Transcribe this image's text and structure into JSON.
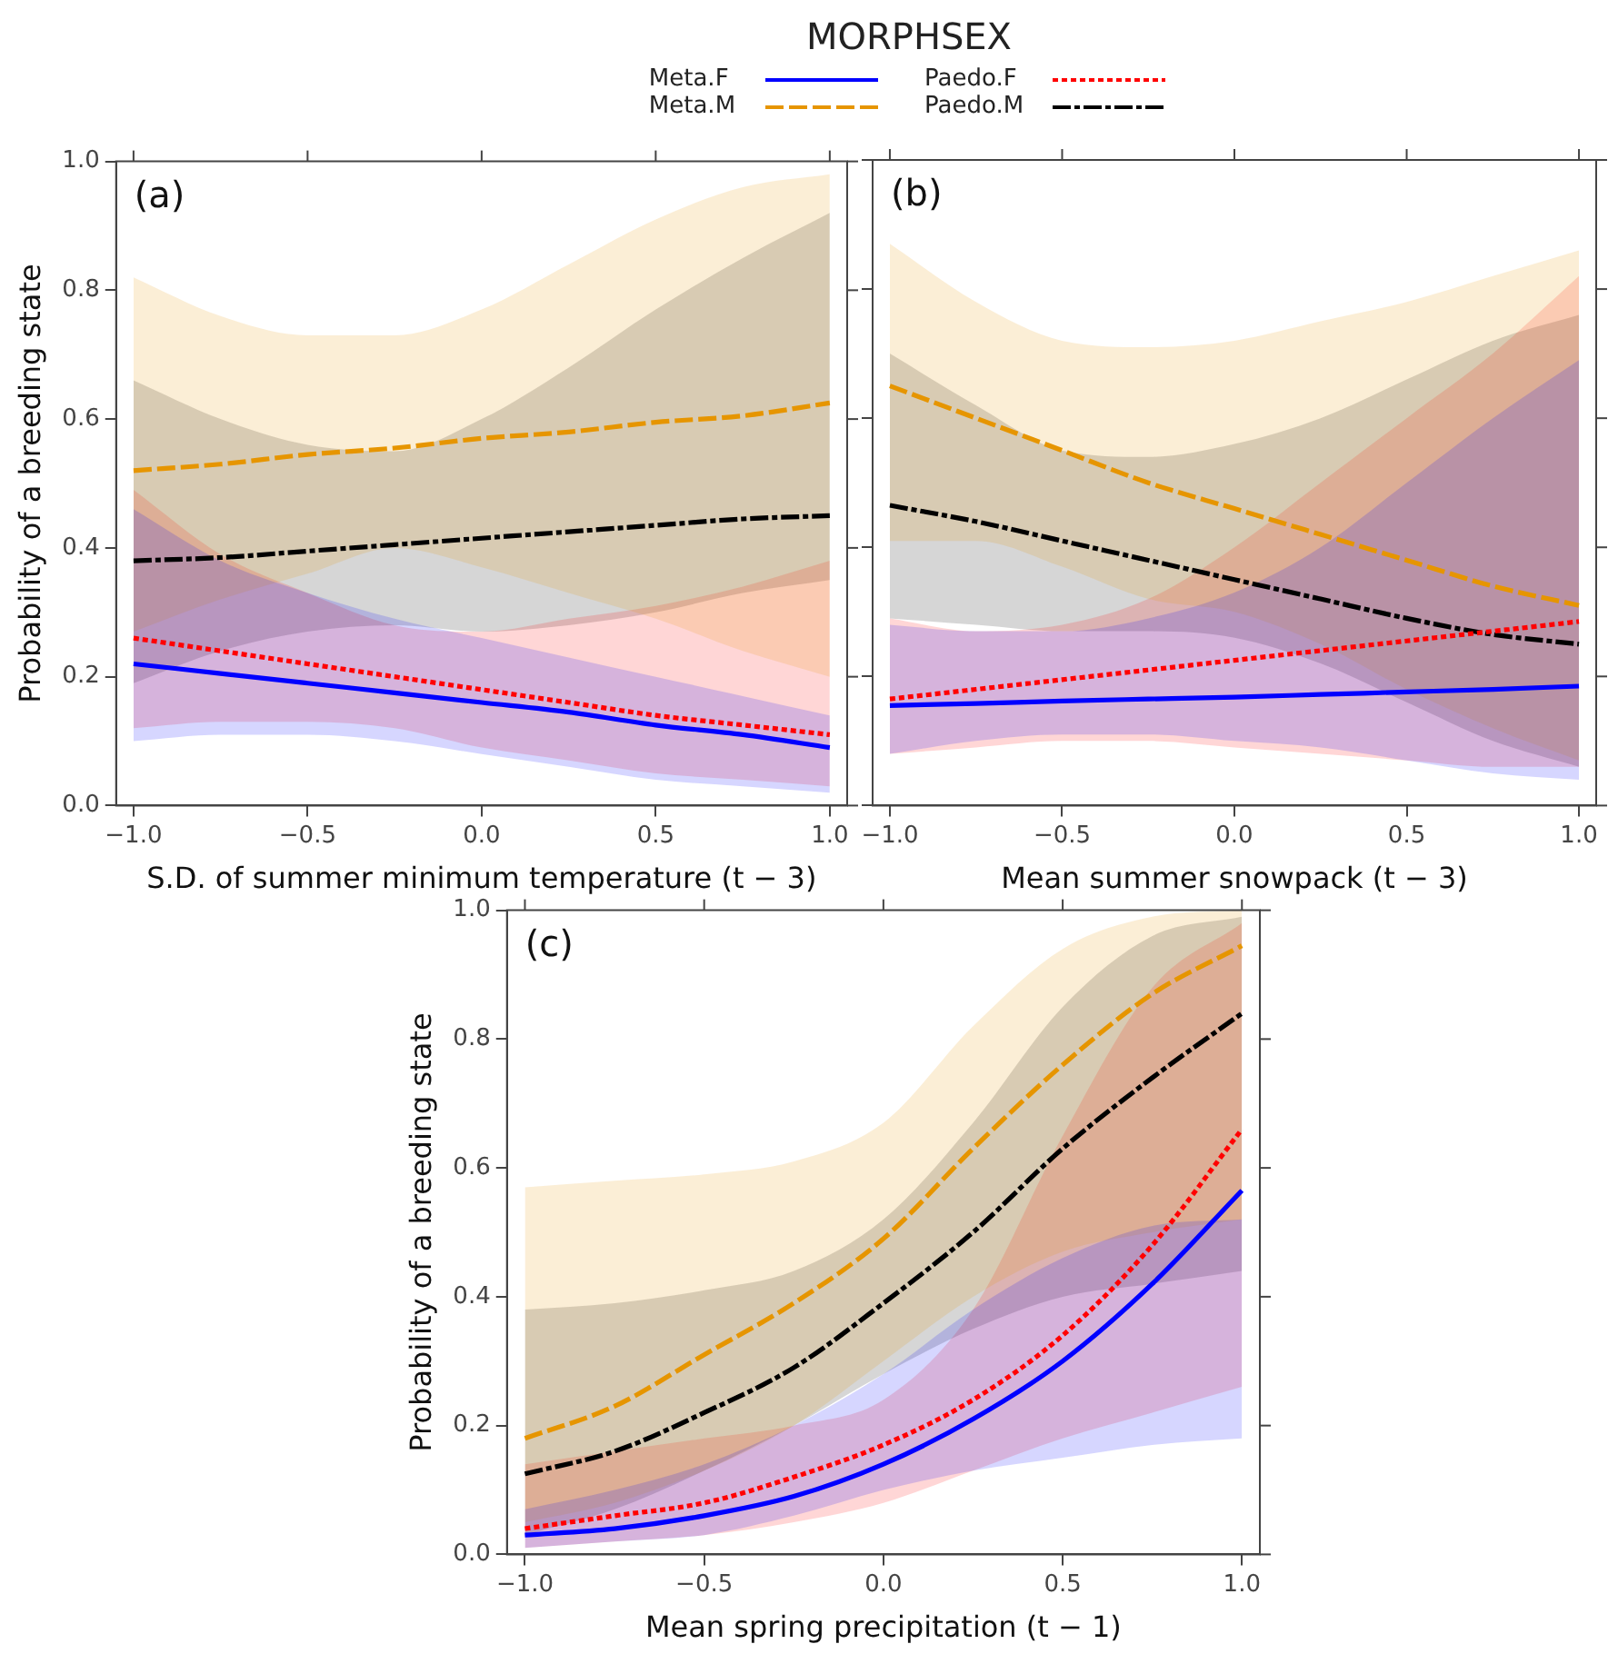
{
  "chart_data": [
    {
      "type": "line",
      "ylabel": "Probability of a breeding state",
      "xlabel": "S.D. of summer minimum temperature (t − 3)",
      "legend_title": "MORPHSEX",
      "legend": "top",
      "annotations": [
        "(a)"
      ],
      "x": [
        -1,
        -0.75,
        -0.5,
        -0.25,
        0,
        0.25,
        0.5,
        0.75,
        1
      ],
      "xlim": [
        -1.05,
        1.05
      ],
      "xticks": [
        {
          "value": -1,
          "label": "−1.0"
        },
        {
          "value": -0.5,
          "label": "−0.5"
        },
        {
          "value": 0,
          "label": "0.0"
        },
        {
          "value": 0.5,
          "label": "0.5"
        },
        {
          "value": 1,
          "label": "1.0"
        }
      ],
      "ylim": [
        0,
        1
      ],
      "yticks": [
        {
          "value": 0,
          "label": "0.0"
        },
        {
          "value": 0.2,
          "label": "0.2"
        },
        {
          "value": 0.4,
          "label": "0.4"
        },
        {
          "value": 0.6,
          "label": "0.6"
        },
        {
          "value": 0.8,
          "label": "0.8"
        },
        {
          "value": 1,
          "label": "1.0"
        }
      ],
      "series": [
        {
          "name": "Meta.F",
          "color": "#0000ff",
          "line_style": "solid",
          "values": [
            0.22,
            0.205,
            0.19,
            0.175,
            0.16,
            0.145,
            0.125,
            0.11,
            0.09
          ],
          "lower": [
            0.1,
            0.11,
            0.11,
            0.1,
            0.08,
            0.06,
            0.04,
            0.03,
            0.02
          ],
          "upper": [
            0.46,
            0.38,
            0.33,
            0.29,
            0.26,
            0.23,
            0.2,
            0.17,
            0.14
          ]
        },
        {
          "name": "Meta.M",
          "color": "#e69500",
          "line_style": "dashed",
          "values": [
            0.52,
            0.53,
            0.545,
            0.555,
            0.57,
            0.58,
            0.595,
            0.605,
            0.625
          ],
          "lower": [
            0.27,
            0.32,
            0.36,
            0.4,
            0.37,
            0.33,
            0.29,
            0.24,
            0.2
          ],
          "upper": [
            0.82,
            0.76,
            0.73,
            0.73,
            0.77,
            0.84,
            0.91,
            0.96,
            0.98
          ]
        },
        {
          "name": "Paedo.F",
          "color": "#ff0000",
          "line_style": "dotted",
          "values": [
            0.26,
            0.24,
            0.22,
            0.2,
            0.18,
            0.16,
            0.14,
            0.125,
            0.11
          ],
          "lower": [
            0.12,
            0.13,
            0.13,
            0.12,
            0.09,
            0.07,
            0.05,
            0.04,
            0.03
          ],
          "upper": [
            0.49,
            0.39,
            0.33,
            0.28,
            0.27,
            0.29,
            0.31,
            0.34,
            0.38
          ]
        },
        {
          "name": "Paedo.M",
          "color": "#000000",
          "line_style": "dashdot",
          "values": [
            0.38,
            0.385,
            0.395,
            0.405,
            0.415,
            0.425,
            0.435,
            0.445,
            0.45
          ],
          "lower": [
            0.19,
            0.24,
            0.27,
            0.28,
            0.27,
            0.28,
            0.3,
            0.33,
            0.35
          ],
          "upper": [
            0.66,
            0.6,
            0.56,
            0.55,
            0.6,
            0.68,
            0.77,
            0.85,
            0.92
          ]
        }
      ]
    },
    {
      "type": "line",
      "xlabel": "Mean summer snowpack (t − 3)",
      "annotations": [
        "(b)"
      ],
      "tick_labels": "x",
      "x": [
        -1,
        -0.75,
        -0.5,
        -0.25,
        0,
        0.25,
        0.5,
        0.75,
        1
      ],
      "xlim": [
        -1.05,
        1.05
      ],
      "xticks": [
        {
          "value": -1,
          "label": "−1.0"
        },
        {
          "value": -0.5,
          "label": "−0.5"
        },
        {
          "value": 0,
          "label": "0.0"
        },
        {
          "value": 0.5,
          "label": "0.5"
        },
        {
          "value": 1,
          "label": "1.0"
        }
      ],
      "ylim": [
        0,
        1
      ],
      "yticks": [
        {
          "value": 0,
          "label": null
        },
        {
          "value": 0.2,
          "label": null
        },
        {
          "value": 0.4,
          "label": null
        },
        {
          "value": 0.6,
          "label": null
        },
        {
          "value": 0.8,
          "label": null
        },
        {
          "value": 1,
          "label": null
        }
      ],
      "series": [
        {
          "color": "#0000ff",
          "line_style": "solid",
          "values": [
            0.155,
            0.158,
            0.162,
            0.165,
            0.168,
            0.172,
            0.176,
            0.18,
            0.185
          ],
          "lower": [
            0.08,
            0.1,
            0.11,
            0.11,
            0.1,
            0.09,
            0.07,
            0.05,
            0.04
          ],
          "upper": [
            0.28,
            0.27,
            0.27,
            0.29,
            0.33,
            0.4,
            0.5,
            0.6,
            0.69
          ]
        },
        {
          "color": "#e69500",
          "line_style": "dashed",
          "values": [
            0.65,
            0.6,
            0.55,
            0.5,
            0.46,
            0.42,
            0.38,
            0.34,
            0.31
          ],
          "lower": [
            0.41,
            0.41,
            0.37,
            0.32,
            0.3,
            0.25,
            0.18,
            0.12,
            0.07
          ],
          "upper": [
            0.87,
            0.78,
            0.72,
            0.71,
            0.72,
            0.75,
            0.78,
            0.82,
            0.86
          ]
        },
        {
          "color": "#ff0000",
          "line_style": "dotted",
          "values": [
            0.165,
            0.18,
            0.195,
            0.21,
            0.225,
            0.24,
            0.255,
            0.27,
            0.285
          ],
          "lower": [
            0.08,
            0.09,
            0.1,
            0.1,
            0.09,
            0.08,
            0.07,
            0.06,
            0.06
          ],
          "upper": [
            0.29,
            0.27,
            0.28,
            0.32,
            0.4,
            0.5,
            0.6,
            0.7,
            0.82
          ]
        },
        {
          "color": "#000000",
          "line_style": "dashdot",
          "values": [
            0.465,
            0.44,
            0.41,
            0.38,
            0.35,
            0.32,
            0.29,
            0.265,
            0.25
          ],
          "lower": [
            0.29,
            0.28,
            0.27,
            0.27,
            0.26,
            0.22,
            0.16,
            0.1,
            0.06
          ],
          "upper": [
            0.7,
            0.62,
            0.55,
            0.54,
            0.56,
            0.6,
            0.66,
            0.72,
            0.76
          ]
        }
      ]
    },
    {
      "type": "line",
      "ylabel": "Probability of a breeding state",
      "xlabel": "Mean spring precipitation (t − 1)",
      "annotations": [
        "(c)"
      ],
      "x": [
        -1,
        -0.75,
        -0.5,
        -0.25,
        0,
        0.25,
        0.5,
        0.75,
        1
      ],
      "xlim": [
        -1.05,
        1.05
      ],
      "xticks": [
        {
          "value": -1,
          "label": "−1.0"
        },
        {
          "value": -0.5,
          "label": "−0.5"
        },
        {
          "value": 0,
          "label": "0.0"
        },
        {
          "value": 0.5,
          "label": "0.5"
        },
        {
          "value": 1,
          "label": "1.0"
        }
      ],
      "ylim": [
        0,
        1
      ],
      "yticks": [
        {
          "value": 0,
          "label": "0.0"
        },
        {
          "value": 0.2,
          "label": "0.2"
        },
        {
          "value": 0.4,
          "label": "0.4"
        },
        {
          "value": 0.6,
          "label": "0.6"
        },
        {
          "value": 0.8,
          "label": "0.8"
        },
        {
          "value": 1,
          "label": "1.0"
        }
      ],
      "series": [
        {
          "color": "#0000ff",
          "line_style": "solid",
          "values": [
            0.03,
            0.04,
            0.06,
            0.09,
            0.14,
            0.21,
            0.3,
            0.42,
            0.565
          ],
          "lower": [
            0.01,
            0.02,
            0.03,
            0.06,
            0.1,
            0.13,
            0.15,
            0.17,
            0.18
          ],
          "upper": [
            0.07,
            0.1,
            0.14,
            0.2,
            0.28,
            0.38,
            0.46,
            0.51,
            0.52
          ]
        },
        {
          "color": "#e69500",
          "line_style": "dashed",
          "values": [
            0.18,
            0.23,
            0.31,
            0.39,
            0.49,
            0.63,
            0.76,
            0.87,
            0.945
          ],
          "lower": [
            0.05,
            0.08,
            0.13,
            0.2,
            0.3,
            0.4,
            0.47,
            0.5,
            0.52
          ],
          "upper": [
            0.57,
            0.58,
            0.59,
            0.61,
            0.67,
            0.82,
            0.94,
            0.99,
            1
          ]
        },
        {
          "color": "#ff0000",
          "line_style": "dotted",
          "values": [
            0.04,
            0.06,
            0.08,
            0.12,
            0.17,
            0.24,
            0.34,
            0.48,
            0.66
          ],
          "lower": [
            0.01,
            0.02,
            0.03,
            0.05,
            0.08,
            0.13,
            0.18,
            0.22,
            0.26
          ],
          "upper": [
            0.14,
            0.16,
            0.18,
            0.2,
            0.24,
            0.38,
            0.65,
            0.88,
            0.98
          ]
        },
        {
          "color": "#000000",
          "line_style": "dashdot",
          "values": [
            0.125,
            0.16,
            0.22,
            0.29,
            0.39,
            0.5,
            0.63,
            0.74,
            0.84
          ],
          "lower": [
            0.03,
            0.07,
            0.13,
            0.2,
            0.28,
            0.35,
            0.4,
            0.42,
            0.44
          ],
          "upper": [
            0.38,
            0.39,
            0.41,
            0.44,
            0.52,
            0.67,
            0.85,
            0.96,
            0.99
          ]
        }
      ]
    }
  ]
}
